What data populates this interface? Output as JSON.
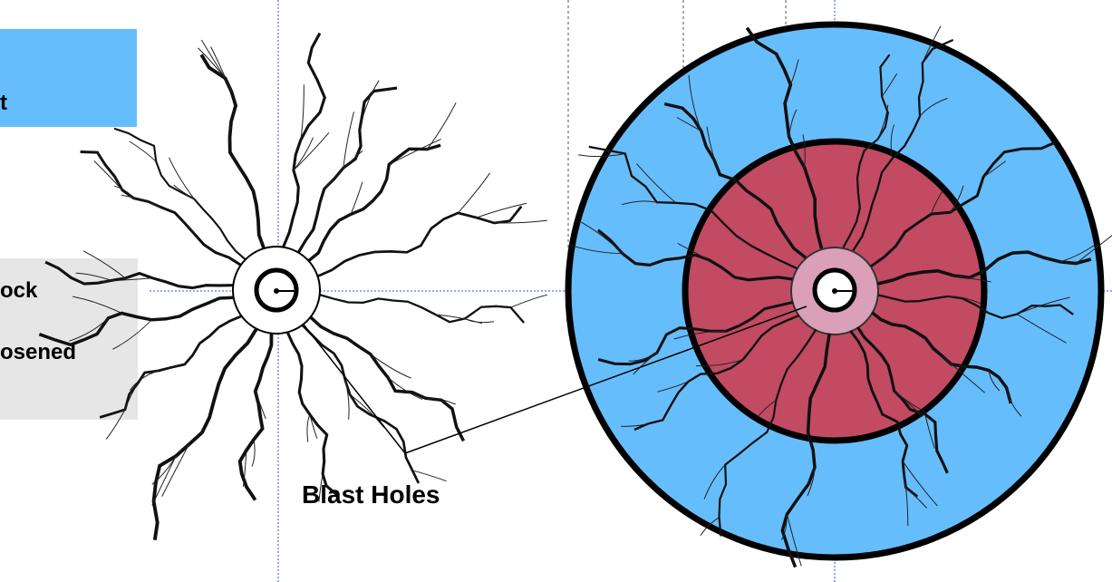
{
  "labels": {
    "top_box": "t",
    "rock_line1": "ock",
    "rock_line2": "osened",
    "blast_holes": "Blast Holes"
  },
  "colors": {
    "blue_zone": "#66bdfc",
    "red_zone": "#c24a63",
    "core": "#d9a0b8",
    "gray_box": "#e6e6e6",
    "guide": "#3355cc"
  }
}
